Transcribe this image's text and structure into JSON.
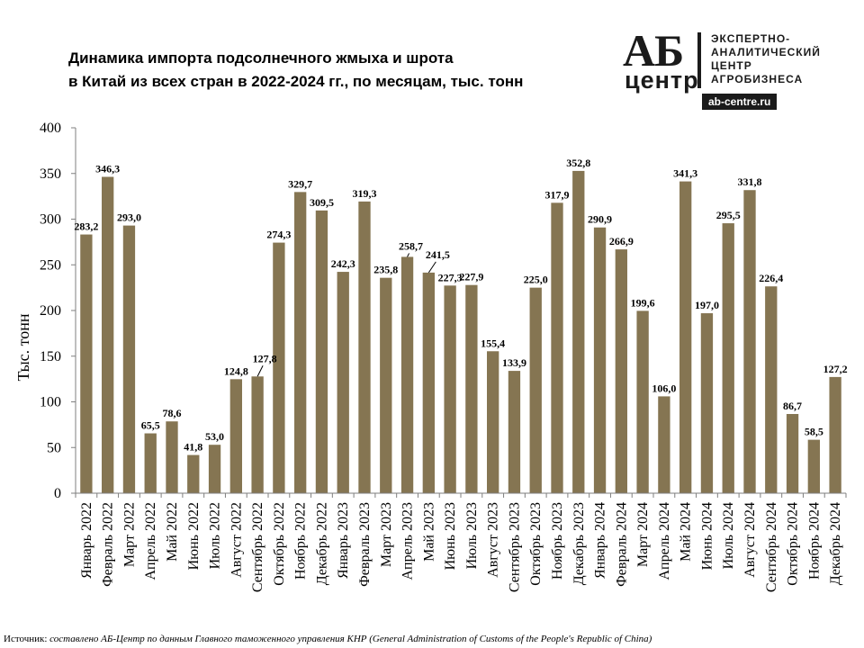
{
  "title_lines": [
    "Динамика импорта подсолнечного жмыха и шрота",
    "в Китай из всех стран в 2022-2024 гг., по месяцам, тыс. тонн"
  ],
  "logo": {
    "ab": "АБ",
    "center": "центр",
    "lines": [
      "ЭКСПЕРТНО-",
      "АНАЛИТИЧЕСКИЙ",
      "ЦЕНТР",
      "АГРОБИЗНЕСА"
    ],
    "url": "ab-centre.ru"
  },
  "source": {
    "label": "Источник:",
    "text": "составлено АБ-Центр по данным Главного таможенного управления КНР (General Administration of Customs of the People's Republic of China)"
  },
  "colors": {
    "bar": "#857552",
    "axis": "#7f7f7f"
  },
  "chart_data": {
    "type": "bar",
    "title": "Динамика импорта подсолнечного жмыха и шрота в Китай из всех стран в 2022-2024 гг., по месяцам, тыс. тонн",
    "ylabel": "Тыс. тонн",
    "ylim": [
      0,
      400
    ],
    "yticks": [
      0,
      50,
      100,
      150,
      200,
      250,
      300,
      350,
      400
    ],
    "grid": false,
    "categories": [
      "Январь 2022",
      "Февраль 2022",
      "Март 2022",
      "Апрель 2022",
      "Май 2022",
      "Июнь 2022",
      "Июль 2022",
      "Август 2022",
      "Сентябрь 2022",
      "Октябрь 2022",
      "Ноябрь 2022",
      "Декабрь 2022",
      "Январь 2023",
      "Февраль 2023",
      "Март 2023",
      "Апрель 2023",
      "Май 2023",
      "Июнь 2023",
      "Июль 2023",
      "Август 2023",
      "Сентябрь 2023",
      "Октябрь 2023",
      "Ноябрь 2023",
      "Декабрь 2023",
      "Январь 2024",
      "Февраль 2024",
      "Март 2024",
      "Апрель 2024",
      "Май 2024",
      "Июнь 2024",
      "Июль 2024",
      "Август 2024",
      "Сентябрь 2024",
      "Октябрь 2024",
      "Ноябрь 2024",
      "Декабрь 2024"
    ],
    "values": [
      283.2,
      346.3,
      293.0,
      65.5,
      78.6,
      41.8,
      53.0,
      124.8,
      127.8,
      274.3,
      329.7,
      309.5,
      242.3,
      319.3,
      235.8,
      258.7,
      241.5,
      227.3,
      227.9,
      155.4,
      133.9,
      225.0,
      317.9,
      352.8,
      290.9,
      266.9,
      199.6,
      106.0,
      341.3,
      197.0,
      295.5,
      331.8,
      226.4,
      86.7,
      58.5,
      127.2
    ],
    "labels": [
      "283,2",
      "346,3",
      "293,0",
      "65,5",
      "78,6",
      "41,8",
      "53,0",
      "124,8",
      "127,8",
      "274,3",
      "329,7",
      "309,5",
      "242,3",
      "319,3",
      "235,8",
      "258,7",
      "241,5",
      "227,3",
      "227,9",
      "155,4",
      "133,9",
      "225,0",
      "317,9",
      "352,8",
      "290,9",
      "266,9",
      "199,6",
      "106,0",
      "341,3",
      "197,0",
      "295,5",
      "331,8",
      "226,4",
      "86,7",
      "58,5",
      "127,2"
    ]
  }
}
